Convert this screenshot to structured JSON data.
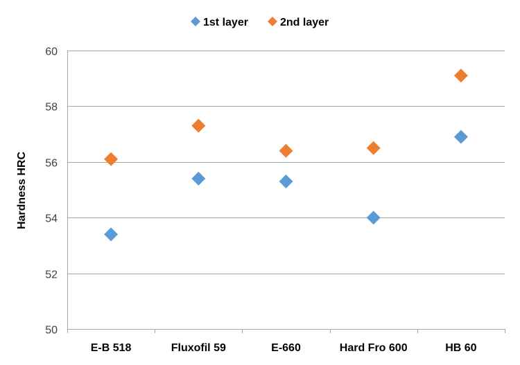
{
  "chart_data": {
    "type": "scatter",
    "categories": [
      "E-B 518",
      "Fluxofil 59",
      "E-660",
      "Hard Fro 600",
      "HB 60"
    ],
    "series": [
      {
        "name": "1st layer",
        "values": [
          53.4,
          55.4,
          55.3,
          54.0,
          56.9
        ],
        "color": "#5B9BD5",
        "marker": "diamond"
      },
      {
        "name": "2nd layer",
        "values": [
          56.1,
          57.3,
          56.4,
          56.5,
          59.1
        ],
        "color": "#ED7D31",
        "marker": "diamond"
      }
    ],
    "title": "",
    "xlabel": "",
    "ylabel": "Hardness  HRC",
    "ylim": [
      50,
      60
    ],
    "yticks": [
      50,
      52,
      54,
      56,
      58,
      60
    ],
    "grid": "horizontal",
    "legend_position": "top"
  }
}
